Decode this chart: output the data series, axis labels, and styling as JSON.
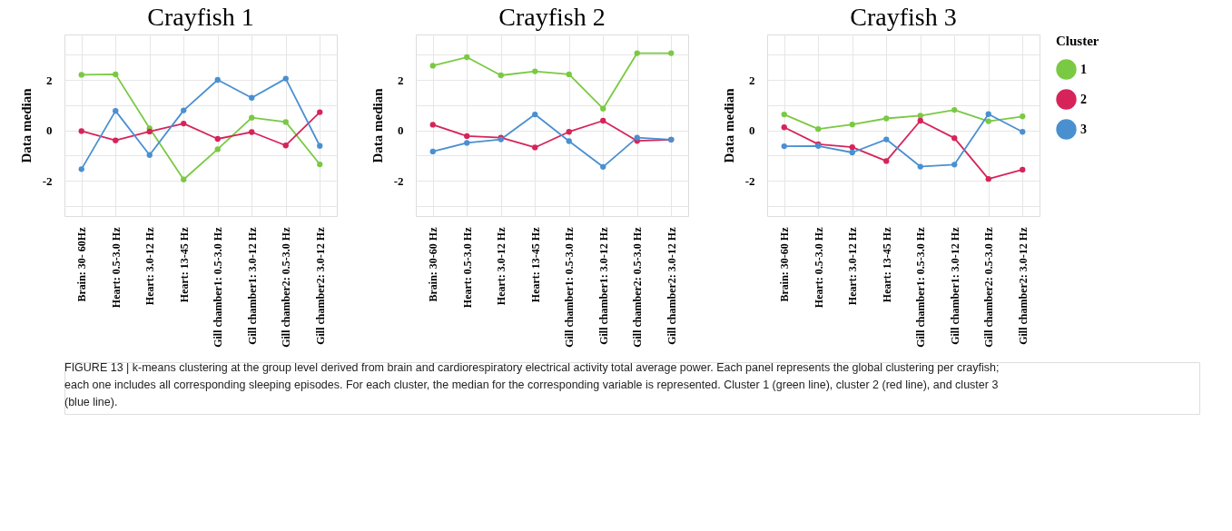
{
  "chart_data": [
    {
      "type": "line",
      "title": "Crayfish 1",
      "ylabel": "Data median",
      "categories": [
        "Brain: 30- 60Hz",
        "Heart: 0.5-3.0 Hz",
        "Heart: 3.0-12 Hz",
        "Heart: 13-45 Hz",
        "Gill chamber1: 0.5-3.0 Hz",
        "Gill chamber1: 3.0-12 Hz",
        "Gill chamber2: 0.5-3.0 Hz",
        "Gill chamber2: 3.0-12 Hz"
      ],
      "series": [
        {
          "color": "#7ac943",
          "values": [
            2.2,
            2.22,
            0.08,
            -1.95,
            -0.75,
            0.5,
            0.33,
            -1.35
          ]
        },
        {
          "color": "#d6245a",
          "values": [
            -0.03,
            -0.4,
            -0.05,
            0.27,
            -0.34,
            -0.07,
            -0.6,
            0.72
          ]
        },
        {
          "color": "#4a90d0",
          "values": [
            -1.54,
            0.77,
            -0.98,
            0.79,
            2.0,
            1.29,
            2.05,
            -0.62
          ]
        }
      ],
      "ylim": [
        -3.4,
        3.8
      ],
      "yticks": [
        {
          "value": -3,
          "label": null
        },
        -2,
        {
          "value": -1,
          "label": null
        },
        0,
        {
          "value": 1,
          "label": null
        },
        2,
        {
          "value": 3,
          "label": null
        }
      ],
      "grid": true,
      "marker": "circle",
      "line_style": "solid",
      "legend": false,
      "annotations": [
        "FIGURE 13 | k-means clustering at the group level derived from brain and cardiorespiratory electrical activity total average power. Each panel represents the global clustering per crayfish; each one includes all corresponding sleeping episodes. For each cluster, the median for the corresponding variable is represented. Cluster 1 (green line), cluster 2 (red line), and cluster 3 (blue line)."
      ]
    },
    {
      "type": "line",
      "title": "Crayfish 2",
      "ylabel": "Data median",
      "categories": [
        "Brain: 30-60 Hz",
        "Heart: 0.5-3.0 Hz",
        "Heart: 3.0-12 Hz",
        "Heart: 13-45 Hz",
        "Gill chamber1: 0.5-3.0 Hz",
        "Gill chamber1: 3.0-12 Hz",
        "Gill chamber2: 0.5-3.0 Hz",
        "Gill chamber2: 3.0-12 Hz"
      ],
      "series": [
        {
          "color": "#7ac943",
          "values": [
            2.56,
            2.9,
            2.18,
            2.34,
            2.22,
            0.86,
            3.06,
            3.06
          ]
        },
        {
          "color": "#d6245a",
          "values": [
            0.22,
            -0.23,
            -0.29,
            -0.68,
            -0.06,
            0.38,
            -0.42,
            -0.37
          ]
        },
        {
          "color": "#4a90d0",
          "values": [
            -0.84,
            -0.5,
            -0.36,
            0.63,
            -0.43,
            -1.45,
            -0.29,
            -0.37
          ]
        }
      ],
      "ylim": [
        -3.4,
        3.8
      ],
      "yticks": [
        {
          "value": -3,
          "label": null
        },
        -2,
        {
          "value": -1,
          "label": null
        },
        0,
        {
          "value": 1,
          "label": null
        },
        2,
        {
          "value": 3,
          "label": null
        }
      ],
      "grid": true,
      "marker": "circle",
      "line_style": "solid",
      "legend": false
    },
    {
      "type": "line",
      "title": "Crayfish 3",
      "ylabel": "Data median",
      "legend_title": "Cluster",
      "categories": [
        "Brain: 30-60 Hz",
        "Heart: 0.5-3.0 Hz",
        "Heart: 3.0-12 Hz",
        "Heart: 13-45 Hz",
        "Gill chamber1: 0.5-3.0 Hz",
        "Gill chamber1: 3.0-12 Hz",
        "Gill chamber2: 0.5-3.0 Hz",
        "Gill chamber2: 3.0-12 Hz"
      ],
      "series": [
        {
          "name": "1",
          "color": "#7ac943",
          "values": [
            0.63,
            0.05,
            0.23,
            0.47,
            0.58,
            0.81,
            0.36,
            0.55
          ]
        },
        {
          "name": "2",
          "color": "#d6245a",
          "values": [
            0.12,
            -0.55,
            -0.67,
            -1.22,
            0.38,
            -0.31,
            -1.93,
            -1.56
          ]
        },
        {
          "name": "3",
          "color": "#4a90d0",
          "values": [
            -0.63,
            -0.62,
            -0.88,
            -0.36,
            -1.44,
            -1.36,
            0.64,
            -0.06
          ]
        }
      ],
      "ylim": [
        -3.4,
        3.8
      ],
      "yticks": [
        {
          "value": -3,
          "label": null
        },
        -2,
        {
          "value": -1,
          "label": null
        },
        0,
        {
          "value": 1,
          "label": null
        },
        2,
        {
          "value": 3,
          "label": null
        }
      ],
      "grid": true,
      "marker": "circle",
      "line_style": "solid",
      "legend": "right"
    }
  ]
}
